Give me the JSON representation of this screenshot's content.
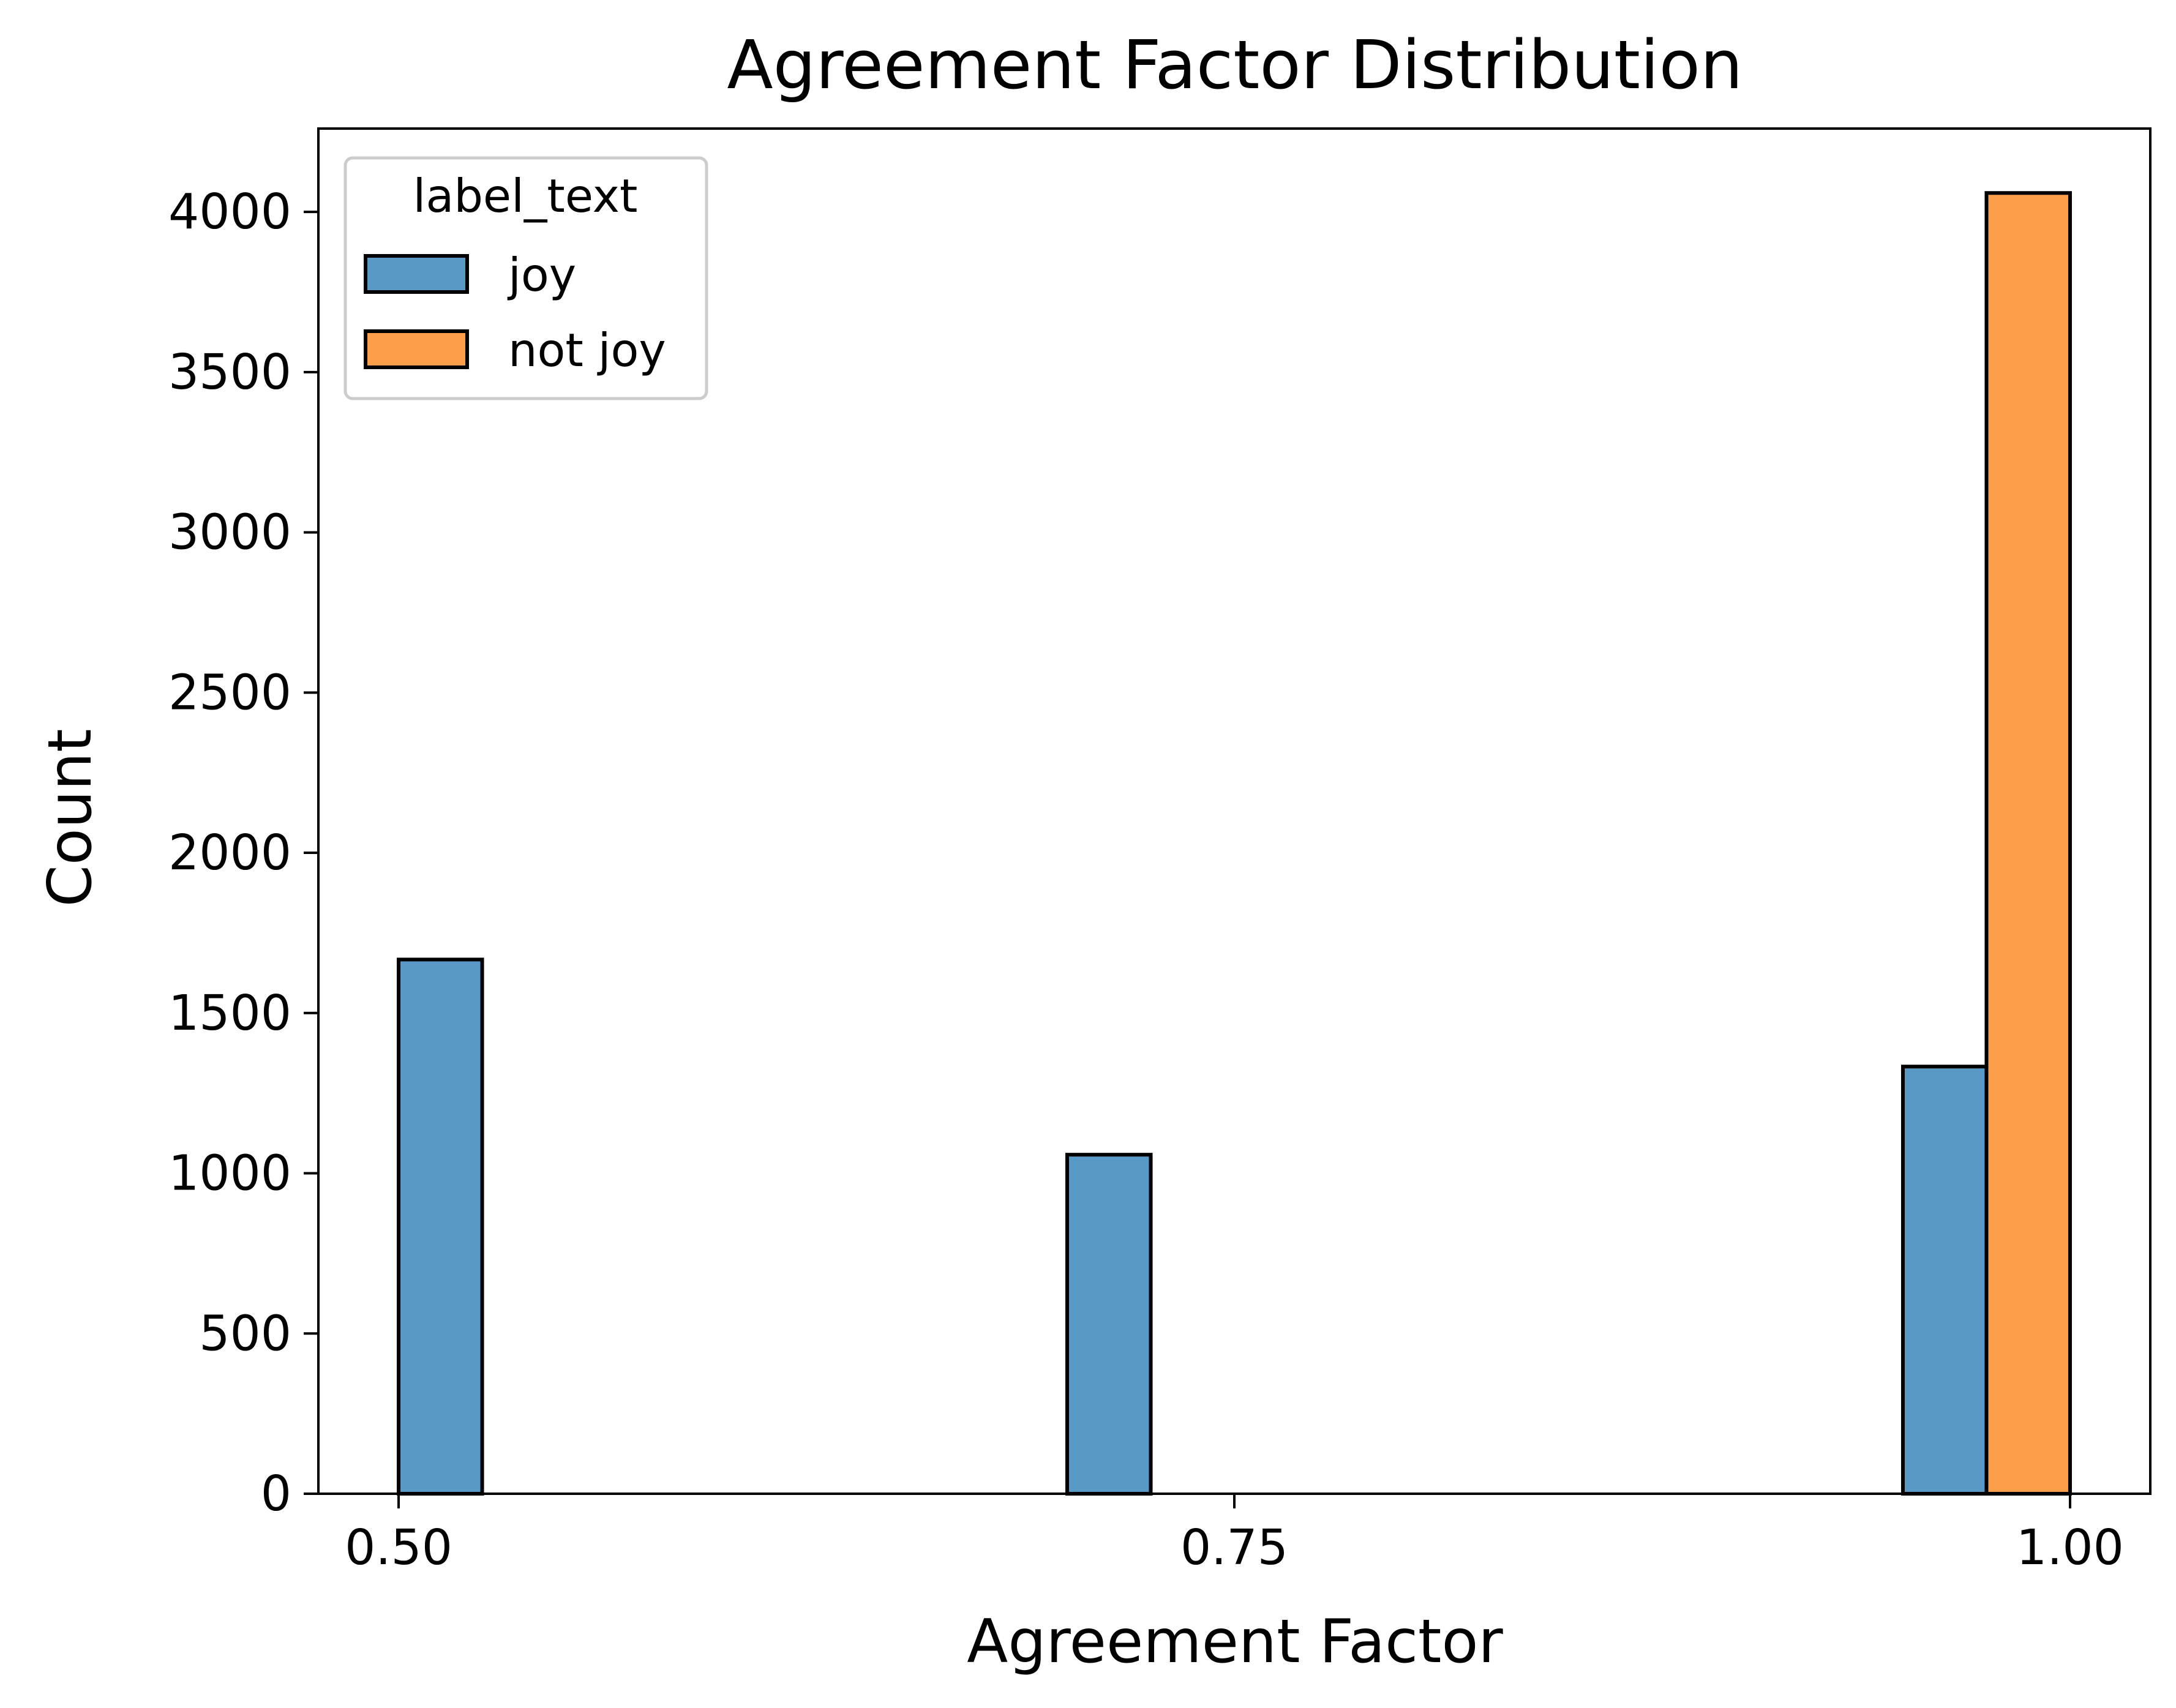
{
  "chart_data": {
    "type": "bar",
    "title": "Agreement Factor Distribution",
    "xlabel": "Agreement Factor",
    "ylabel": "Count",
    "xlim": [
      0.476,
      1.024
    ],
    "ylim": [
      0,
      4260
    ],
    "x_ticks": [
      0.5,
      0.75,
      1.0
    ],
    "x_tick_labels": [
      "0.50",
      "0.75",
      "1.00"
    ],
    "y_ticks": [
      0,
      500,
      1000,
      1500,
      2000,
      2500,
      3000,
      3500,
      4000
    ],
    "y_tick_labels": [
      "0",
      "500",
      "1000",
      "1500",
      "2000",
      "2500",
      "3000",
      "3500",
      "4000"
    ],
    "bin_width": 0.025,
    "grid": false,
    "legend": {
      "title": "label_text",
      "placement": "top-left"
    },
    "series": [
      {
        "name": "joy",
        "color": "#5899c6",
        "bars": [
          {
            "x_start": 0.5,
            "x_end": 0.525,
            "value": 1667
          },
          {
            "x_start": 0.7,
            "x_end": 0.725,
            "value": 1058
          },
          {
            "x_start": 0.95,
            "x_end": 0.975,
            "value": 1333
          }
        ]
      },
      {
        "name": "not joy",
        "color": "#fc9e4a",
        "bars": [
          {
            "x_start": 0.975,
            "x_end": 1.0,
            "value": 4059
          }
        ]
      }
    ]
  }
}
